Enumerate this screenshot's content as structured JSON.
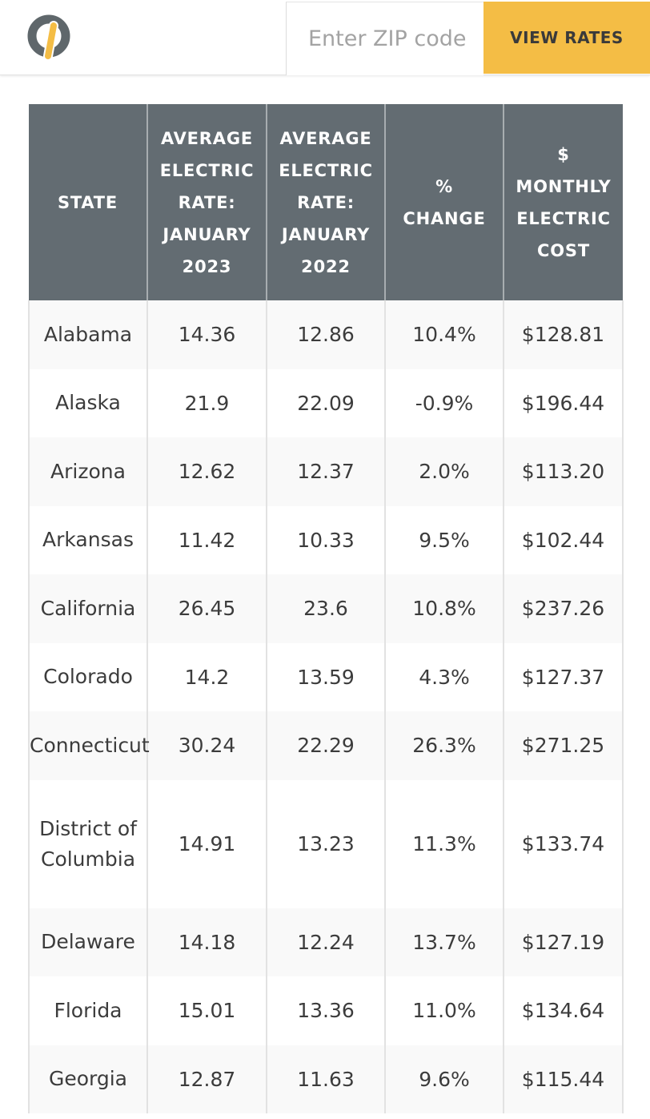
{
  "header": {
    "zip_placeholder": "Enter ZIP code",
    "view_rates_label": "VIEW RATES",
    "colors": {
      "accent": "#f4bd45",
      "logo_ring": "#5f676b",
      "logo_bar": "#f4bd45"
    }
  },
  "table": {
    "columns": [
      "STATE",
      "AVERAGE\nELECTRIC\nRATE:\nJANUARY\n2023",
      "AVERAGE\nELECTRIC\nRATE:\nJANUARY\n2022",
      "%\nCHANGE",
      "$\nMONTHLY\nELECTRIC\nCOST"
    ],
    "rows": [
      {
        "state": "Alabama",
        "rate_2023": "14.36",
        "rate_2022": "12.86",
        "change": "10.4%",
        "cost": "$128.81"
      },
      {
        "state": "Alaska",
        "rate_2023": "21.9",
        "rate_2022": "22.09",
        "change": "-0.9%",
        "cost": "$196.44"
      },
      {
        "state": "Arizona",
        "rate_2023": "12.62",
        "rate_2022": "12.37",
        "change": "2.0%",
        "cost": "$113.20"
      },
      {
        "state": "Arkansas",
        "rate_2023": "11.42",
        "rate_2022": "10.33",
        "change": "9.5%",
        "cost": "$102.44"
      },
      {
        "state": "California",
        "rate_2023": "26.45",
        "rate_2022": "23.6",
        "change": "10.8%",
        "cost": "$237.26"
      },
      {
        "state": "Colorado",
        "rate_2023": "14.2",
        "rate_2022": "13.59",
        "change": "4.3%",
        "cost": "$127.37"
      },
      {
        "state": "Connecticut",
        "rate_2023": "30.24",
        "rate_2022": "22.29",
        "change": "26.3%",
        "cost": "$271.25"
      },
      {
        "state": "District of Columbia",
        "rate_2023": "14.91",
        "rate_2022": "13.23",
        "change": "11.3%",
        "cost": "$133.74"
      },
      {
        "state": "Delaware",
        "rate_2023": "14.18",
        "rate_2022": "12.24",
        "change": "13.7%",
        "cost": "$127.19"
      },
      {
        "state": "Florida",
        "rate_2023": "15.01",
        "rate_2022": "13.36",
        "change": "11.0%",
        "cost": "$134.64"
      },
      {
        "state": "Georgia",
        "rate_2023": "12.87",
        "rate_2022": "11.63",
        "change": "9.6%",
        "cost": "$115.44"
      }
    ]
  }
}
